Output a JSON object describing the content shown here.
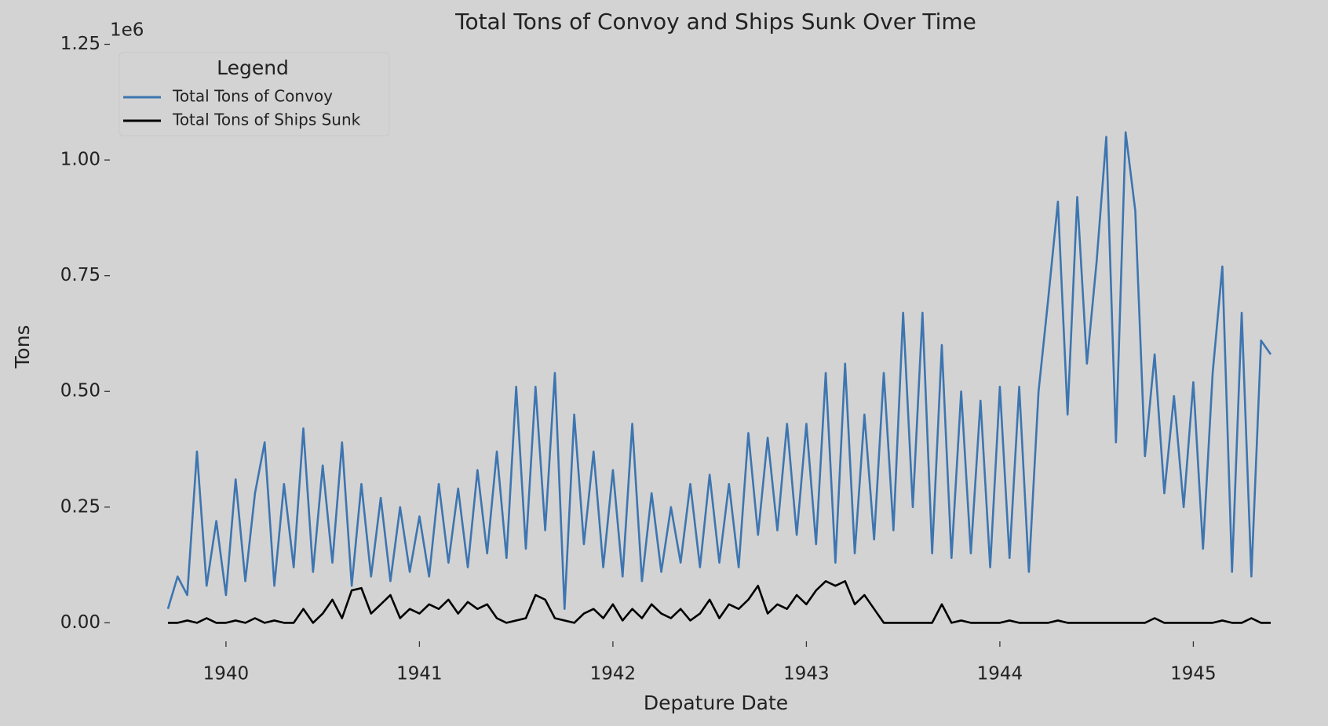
{
  "chart_data": {
    "type": "line",
    "title": "Total Tons of Convoy and Ships Sunk Over Time",
    "x_label": "Depature Date",
    "y_label": "Tons",
    "y_offset_label": "1e6",
    "legend_title": "Legend",
    "legend_loc": "upper left",
    "grid": false,
    "x": [
      1939.7,
      1939.75,
      1939.8,
      1939.85,
      1939.9,
      1939.95,
      1940.0,
      1940.05,
      1940.1,
      1940.15,
      1940.2,
      1940.25,
      1940.3,
      1940.35,
      1940.4,
      1940.45,
      1940.5,
      1940.55,
      1940.6,
      1940.65,
      1940.7,
      1940.75,
      1940.8,
      1940.85,
      1940.9,
      1940.95,
      1941.0,
      1941.05,
      1941.1,
      1941.15,
      1941.2,
      1941.25,
      1941.3,
      1941.35,
      1941.4,
      1941.45,
      1941.5,
      1941.55,
      1941.6,
      1941.65,
      1941.7,
      1941.75,
      1941.8,
      1941.85,
      1941.9,
      1941.95,
      1942.0,
      1942.05,
      1942.1,
      1942.15,
      1942.2,
      1942.25,
      1942.3,
      1942.35,
      1942.4,
      1942.45,
      1942.5,
      1942.55,
      1942.6,
      1942.65,
      1942.7,
      1942.75,
      1942.8,
      1942.85,
      1942.9,
      1942.95,
      1943.0,
      1943.05,
      1943.1,
      1943.15,
      1943.2,
      1943.25,
      1943.3,
      1943.35,
      1943.4,
      1943.45,
      1943.5,
      1943.55,
      1943.6,
      1943.65,
      1943.7,
      1943.75,
      1943.8,
      1943.85,
      1943.9,
      1943.95,
      1944.0,
      1944.05,
      1944.1,
      1944.15,
      1944.2,
      1944.25,
      1944.3,
      1944.35,
      1944.4,
      1944.45,
      1944.5,
      1944.55,
      1944.6,
      1944.65,
      1944.7,
      1944.75,
      1944.8,
      1944.85,
      1944.9,
      1944.95,
      1945.0,
      1945.05,
      1945.1,
      1945.15,
      1945.2,
      1945.25,
      1945.3,
      1945.35,
      1945.4
    ],
    "series": [
      {
        "name": "Total Tons of Convoy",
        "color": "#3d75b0",
        "values": [
          30000,
          100000,
          60000,
          370000,
          80000,
          220000,
          60000,
          310000,
          90000,
          280000,
          390000,
          80000,
          300000,
          120000,
          420000,
          110000,
          340000,
          130000,
          390000,
          80000,
          300000,
          100000,
          270000,
          90000,
          250000,
          110000,
          230000,
          100000,
          300000,
          130000,
          290000,
          120000,
          330000,
          150000,
          370000,
          140000,
          510000,
          160000,
          510000,
          200000,
          540000,
          30000,
          450000,
          170000,
          370000,
          120000,
          330000,
          100000,
          430000,
          90000,
          280000,
          110000,
          250000,
          130000,
          300000,
          120000,
          320000,
          130000,
          300000,
          120000,
          410000,
          190000,
          400000,
          200000,
          430000,
          190000,
          430000,
          170000,
          540000,
          130000,
          560000,
          150000,
          450000,
          180000,
          540000,
          200000,
          670000,
          250000,
          670000,
          150000,
          600000,
          140000,
          500000,
          150000,
          480000,
          120000,
          510000,
          140000,
          510000,
          110000,
          500000,
          700000,
          910000,
          450000,
          920000,
          560000,
          780000,
          1050000,
          390000,
          1060000,
          890000,
          360000,
          580000,
          280000,
          490000,
          250000,
          520000,
          160000,
          540000,
          770000,
          110000,
          670000,
          100000,
          610000,
          580000
        ]
      },
      {
        "name": "Total Tons of Ships Sunk",
        "color": "#000000",
        "values": [
          0,
          0,
          5000,
          0,
          10000,
          0,
          0,
          5000,
          0,
          10000,
          0,
          5000,
          0,
          0,
          30000,
          0,
          20000,
          50000,
          10000,
          70000,
          75000,
          20000,
          40000,
          60000,
          10000,
          30000,
          20000,
          40000,
          30000,
          50000,
          20000,
          45000,
          30000,
          40000,
          10000,
          0,
          5000,
          10000,
          60000,
          50000,
          10000,
          5000,
          0,
          20000,
          30000,
          10000,
          40000,
          5000,
          30000,
          10000,
          40000,
          20000,
          10000,
          30000,
          5000,
          20000,
          50000,
          10000,
          40000,
          30000,
          50000,
          80000,
          20000,
          40000,
          30000,
          60000,
          40000,
          70000,
          90000,
          80000,
          90000,
          40000,
          60000,
          30000,
          0,
          0,
          0,
          0,
          0,
          0,
          40000,
          0,
          5000,
          0,
          0,
          0,
          0,
          5000,
          0,
          0,
          0,
          0,
          5000,
          0,
          0,
          0,
          0,
          0,
          0,
          0,
          0,
          0,
          10000,
          0,
          0,
          0,
          0,
          0,
          0,
          5000,
          0,
          0,
          10000,
          0,
          0
        ]
      }
    ],
    "xlim": [
      1939.4,
      1945.55
    ],
    "xticks": [
      1940,
      1941,
      1942,
      1943,
      1944,
      1945
    ],
    "ylim": [
      -40000,
      1300000
    ],
    "yticks": [
      {
        "value": 0,
        "label": "0.00"
      },
      {
        "value": 250000,
        "label": "0.25"
      },
      {
        "value": 500000,
        "label": "0.50"
      },
      {
        "value": 750000,
        "label": "0.75"
      },
      {
        "value": 1000000,
        "label": "1.00"
      },
      {
        "value": 1250000,
        "label": "1.25"
      }
    ]
  }
}
